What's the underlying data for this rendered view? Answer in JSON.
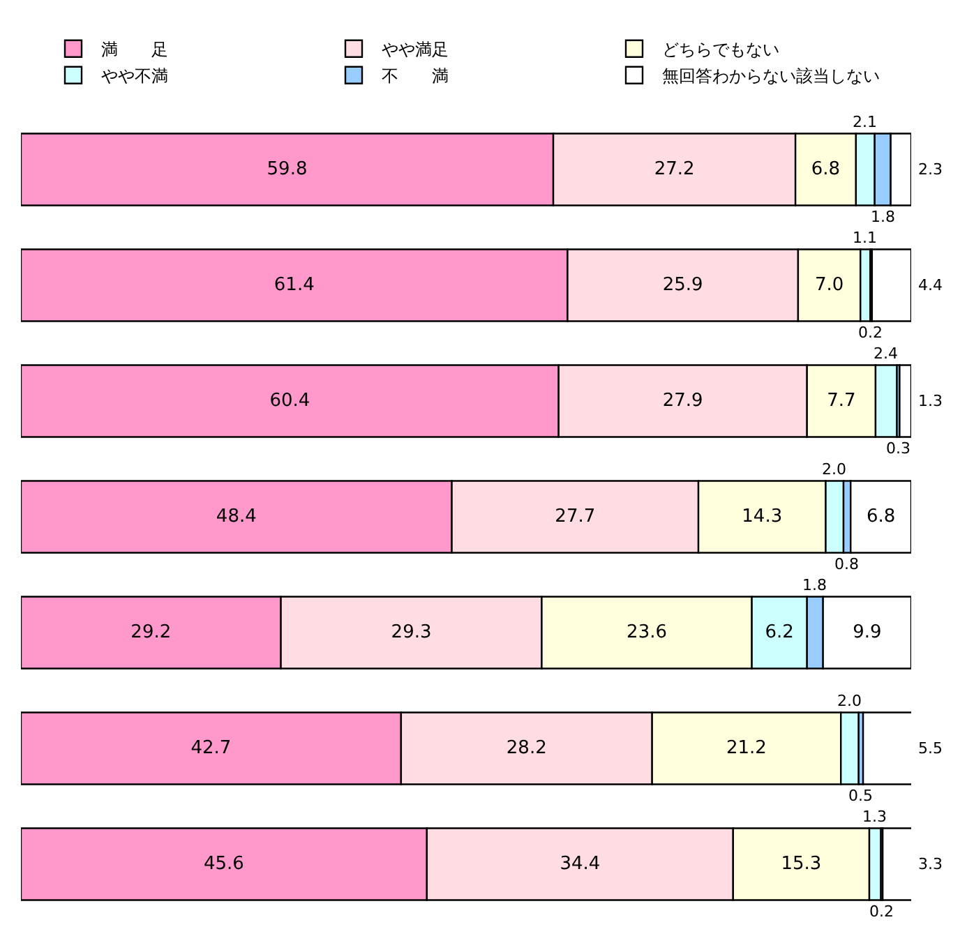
{
  "chart_data": {
    "type": "bar",
    "orientation": "horizontal",
    "stacked": true,
    "legend": "top",
    "tick_labels": false,
    "xlim": [
      0,
      100
    ],
    "categories": [
      null,
      null,
      null,
      null,
      null,
      null,
      null
    ],
    "series": [
      {
        "name": "満　　足",
        "color": "#ff99cc",
        "values": [
          59.8,
          61.4,
          60.4,
          48.4,
          29.2,
          42.7,
          45.6
        ],
        "value_labels": [
          "59.8",
          "61.4",
          "60.4",
          "48.4",
          "29.2",
          "42.7",
          "45.6"
        ]
      },
      {
        "name": "やや満足",
        "color": "#ffdde2",
        "values": [
          27.2,
          25.9,
          27.9,
          27.7,
          29.3,
          28.2,
          34.4
        ],
        "value_labels": [
          "27.2",
          "25.9",
          "27.9",
          "27.7",
          "29.3",
          "28.2",
          "34.4"
        ]
      },
      {
        "name": "どちらでもない",
        "color": "#ffffdd",
        "values": [
          6.8,
          7.0,
          7.7,
          14.3,
          23.6,
          21.2,
          15.3
        ],
        "value_labels": [
          "6.8",
          "7.0",
          "7.7",
          "14.3",
          "23.6",
          "21.2",
          "15.3"
        ]
      },
      {
        "name": "やや不満",
        "color": "#ccffff",
        "values": [
          2.1,
          1.1,
          2.4,
          2.0,
          6.2,
          2.0,
          1.3
        ],
        "value_labels": [
          "2.1",
          "1.1",
          "2.4",
          "2.0",
          "6.2",
          "2.0",
          "1.3"
        ]
      },
      {
        "name": "不　　満",
        "color": "#99ccff",
        "values": [
          1.8,
          0.2,
          0.3,
          0.8,
          1.8,
          0.5,
          0.2
        ],
        "value_labels": [
          "1.8",
          "0.2",
          "0.3",
          "0.8",
          "1.8",
          "0.5",
          "0.2"
        ]
      },
      {
        "name": "無回答わからない該当しない",
        "color": "#ffffff",
        "values": [
          2.3,
          4.4,
          1.3,
          6.8,
          9.9,
          5.5,
          3.3
        ],
        "value_labels": [
          "2.3",
          "4.4",
          "1.3",
          "6.8",
          "9.9",
          "5.5",
          "3.3"
        ]
      }
    ]
  }
}
